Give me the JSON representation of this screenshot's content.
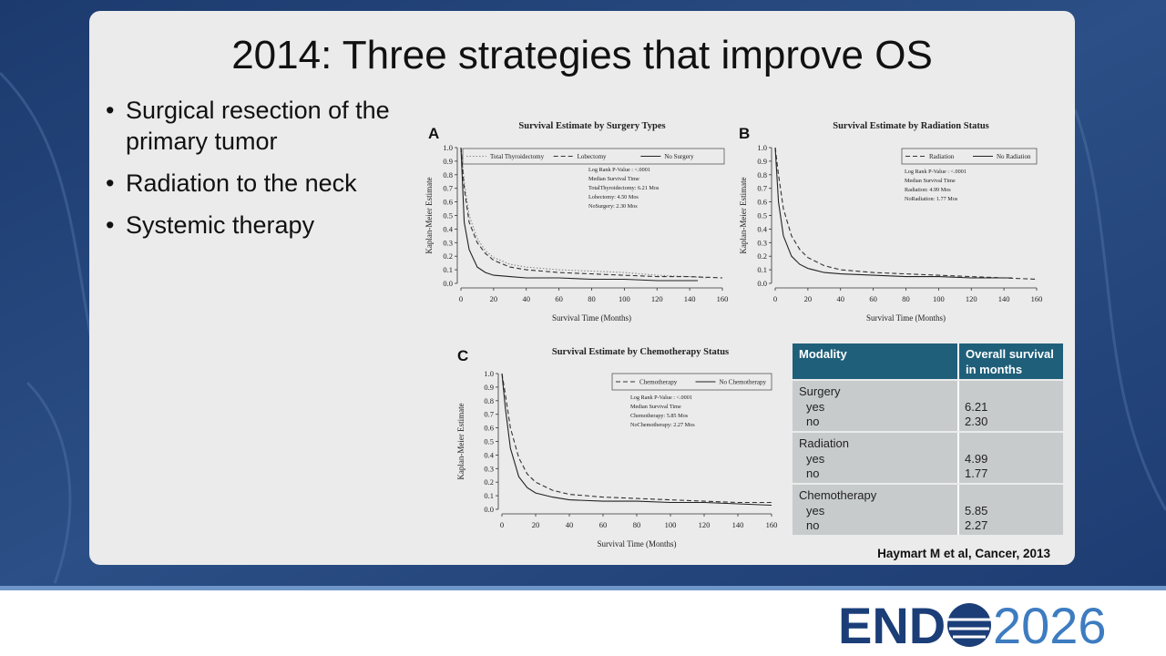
{
  "slide_title": "2014: Three strategies that improve OS",
  "bullets": [
    "Surgical resection of the primary tumor",
    "Radiation to the neck",
    "Systemic therapy"
  ],
  "chart_data": [
    {
      "type": "line",
      "panel": "A",
      "title": "Survival Estimate by Surgery Types",
      "xlabel": "Survival Time (Months)",
      "ylabel": "Kaplan-Meier Estimate",
      "xlim": [
        0,
        160
      ],
      "xticks": [
        0,
        20,
        40,
        60,
        80,
        100,
        120,
        140,
        160
      ],
      "ylim": [
        0,
        1
      ],
      "yticks": [
        {
          "value": 0,
          "label": "0.0"
        },
        0.1,
        0.2,
        0.3,
        0.4,
        0.5,
        0.6,
        0.7,
        0.8,
        0.9,
        {
          "value": 1,
          "label": "1.0"
        }
      ],
      "annotations": [
        "Log Rank P-Value : <.0001",
        "Median Survival Time",
        "TotalThyroidectomy: 6.21 Mos",
        "Lobectomy: 4.50 Mos",
        "NoSurgery: 2.30 Mos"
      ],
      "series": [
        {
          "name": "Total Thyroidectomy",
          "color": "#8a8a8a",
          "dash": "dotted",
          "x": [
            0,
            2,
            5,
            10,
            15,
            20,
            30,
            40,
            60,
            80,
            100,
            120,
            140,
            150
          ],
          "values": [
            1.0,
            0.75,
            0.5,
            0.33,
            0.24,
            0.19,
            0.14,
            0.12,
            0.1,
            0.09,
            0.08,
            0.06,
            0.05,
            0.04
          ]
        },
        {
          "name": "Lobectomy",
          "color": "#333333",
          "dash": "dashed",
          "x": [
            0,
            2,
            5,
            10,
            15,
            20,
            30,
            40,
            60,
            80,
            100,
            120,
            140,
            160
          ],
          "values": [
            1.0,
            0.7,
            0.45,
            0.3,
            0.22,
            0.17,
            0.12,
            0.1,
            0.08,
            0.07,
            0.06,
            0.05,
            0.05,
            0.04
          ]
        },
        {
          "name": "No Surgery",
          "color": "#222222",
          "dash": "solid",
          "x": [
            0,
            2,
            5,
            10,
            15,
            20,
            30,
            40,
            60,
            80,
            100,
            120,
            145
          ],
          "values": [
            1.0,
            0.45,
            0.25,
            0.12,
            0.08,
            0.06,
            0.05,
            0.04,
            0.04,
            0.03,
            0.03,
            0.02,
            0.02
          ]
        }
      ]
    },
    {
      "type": "line",
      "panel": "B",
      "title": "Survival Estimate by Radiation Status",
      "xlabel": "Survival Time (Months)",
      "ylabel": "Kaplan-Meier Estimate",
      "xlim": [
        0,
        160
      ],
      "xticks": [
        0,
        20,
        40,
        60,
        80,
        100,
        120,
        140,
        160
      ],
      "ylim": [
        0,
        1
      ],
      "yticks": [
        {
          "value": 0,
          "label": "0.0"
        },
        0.1,
        0.2,
        0.3,
        0.4,
        0.5,
        0.6,
        0.7,
        0.8,
        0.9,
        {
          "value": 1,
          "label": "1.0"
        }
      ],
      "annotations": [
        "Log Rank P-Value : <.0001",
        "Median Survival Time",
        "Radiation: 4.99 Mos",
        "NoRadiation: 1.77 Mos"
      ],
      "series": [
        {
          "name": "Radiation",
          "color": "#333333",
          "dash": "dashed",
          "x": [
            0,
            2,
            5,
            10,
            15,
            20,
            30,
            40,
            60,
            80,
            100,
            120,
            140,
            160
          ],
          "values": [
            1.0,
            0.8,
            0.55,
            0.35,
            0.25,
            0.19,
            0.13,
            0.1,
            0.08,
            0.07,
            0.06,
            0.05,
            0.04,
            0.03
          ]
        },
        {
          "name": "No Radiation",
          "color": "#222222",
          "dash": "solid",
          "x": [
            0,
            2,
            5,
            10,
            15,
            20,
            30,
            40,
            60,
            80,
            100,
            120,
            145
          ],
          "values": [
            1.0,
            0.6,
            0.35,
            0.2,
            0.14,
            0.11,
            0.08,
            0.07,
            0.06,
            0.05,
            0.05,
            0.04,
            0.04
          ]
        }
      ]
    },
    {
      "type": "line",
      "panel": "C",
      "title": "Survival Estimate by Chemotherapy Status",
      "xlabel": "Survival Time (Months)",
      "ylabel": "Kaplan-Meier Estimate",
      "xlim": [
        0,
        160
      ],
      "xticks": [
        0,
        20,
        40,
        60,
        80,
        100,
        120,
        140,
        160
      ],
      "ylim": [
        0,
        1
      ],
      "yticks": [
        {
          "value": 0,
          "label": "0.0"
        },
        0.1,
        0.2,
        0.3,
        0.4,
        0.5,
        0.6,
        0.7,
        0.8,
        0.9,
        {
          "value": 1,
          "label": "1.0"
        }
      ],
      "annotations": [
        "Log Rank P-Value : <.0001",
        "Median Survival Time",
        "Chemotherapy: 5.85 Mos",
        "NoChemotherapy: 2.27 Mos"
      ],
      "series": [
        {
          "name": "Chemotherapy",
          "color": "#333333",
          "dash": "dashed",
          "x": [
            0,
            2,
            5,
            10,
            15,
            20,
            30,
            40,
            60,
            80,
            100,
            120,
            140,
            160
          ],
          "values": [
            1.0,
            0.85,
            0.6,
            0.38,
            0.26,
            0.2,
            0.14,
            0.11,
            0.09,
            0.08,
            0.07,
            0.06,
            0.05,
            0.05
          ]
        },
        {
          "name": "No Chemotherapy",
          "color": "#222222",
          "dash": "solid",
          "x": [
            0,
            2,
            5,
            10,
            15,
            20,
            30,
            40,
            60,
            80,
            100,
            120,
            140,
            160
          ],
          "values": [
            1.0,
            0.75,
            0.45,
            0.24,
            0.16,
            0.12,
            0.09,
            0.07,
            0.06,
            0.06,
            0.05,
            0.05,
            0.04,
            0.03
          ]
        }
      ]
    }
  ],
  "table": {
    "header": [
      "Modality",
      "Overall survival in months"
    ],
    "groups": [
      {
        "label": "Surgery",
        "rows": [
          [
            "yes",
            "6.21"
          ],
          [
            "no",
            "2.30"
          ]
        ]
      },
      {
        "label": "Radiation",
        "rows": [
          [
            "yes",
            "4.99"
          ],
          [
            "no",
            "1.77"
          ]
        ]
      },
      {
        "label": "Chemotherapy",
        "rows": [
          [
            "yes",
            "5.85"
          ],
          [
            "no",
            "2.27"
          ]
        ]
      }
    ]
  },
  "citation": "Haymart M et al, Cancer, 2013",
  "logo": {
    "left": "END",
    "right": "2026"
  }
}
